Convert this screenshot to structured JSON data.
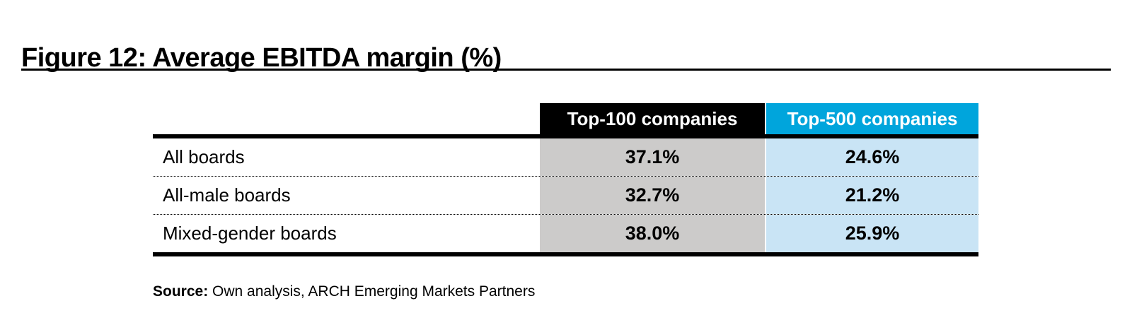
{
  "figure": {
    "title": "Figure 12: Average EBITDA margin (%)"
  },
  "table": {
    "columns": [
      {
        "label": "Top-100 companies",
        "header_bg": "#000000",
        "cell_bg": "#cccbca"
      },
      {
        "label": "Top-500 companies",
        "header_bg": "#00a5dc",
        "cell_bg": "#c9e4f5"
      }
    ],
    "rows": [
      {
        "label": "All boards",
        "top100": "37.1%",
        "top500": "24.6%"
      },
      {
        "label": "All-male boards",
        "top100": "32.7%",
        "top500": "21.2%"
      },
      {
        "label": "Mixed-gender boards",
        "top100": "38.0%",
        "top500": "25.9%"
      }
    ]
  },
  "source": {
    "label": "Source:",
    "text": " Own analysis, ARCH Emerging Markets Partners"
  },
  "colors": {
    "accent_blue": "#00a5dc",
    "light_blue": "#c9e4f5",
    "cell_gray": "#cccbca",
    "header_black": "#000000",
    "rule_black": "#000000"
  },
  "chart_data": {
    "type": "table",
    "title": "Figure 12: Average EBITDA margin (%)",
    "columns": [
      "",
      "Top-100 companies",
      "Top-500 companies"
    ],
    "categories": [
      "All boards",
      "All-male boards",
      "Mixed-gender boards"
    ],
    "series": [
      {
        "name": "Top-100 companies",
        "values": [
          37.1,
          32.7,
          38.0
        ]
      },
      {
        "name": "Top-500 companies",
        "values": [
          24.6,
          21.2,
          25.9
        ]
      }
    ],
    "unit": "%",
    "source": "Own analysis, ARCH Emerging Markets Partners"
  }
}
